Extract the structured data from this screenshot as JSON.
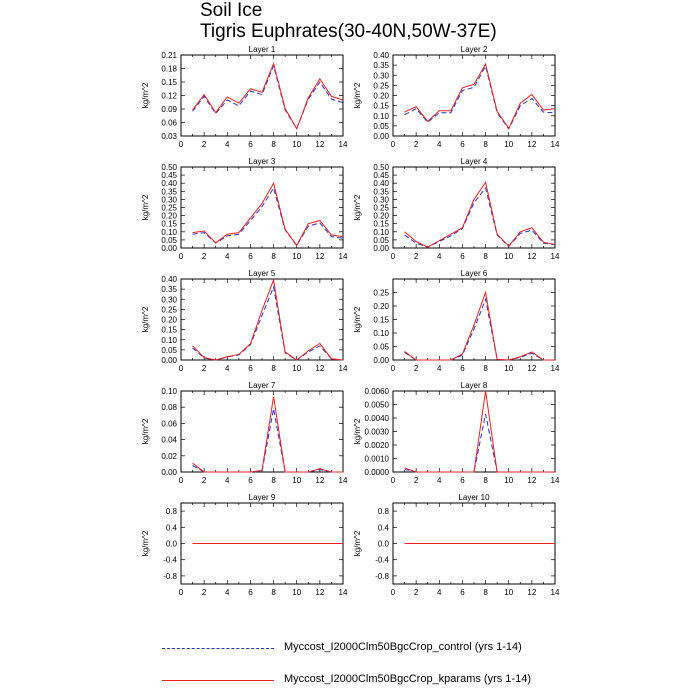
{
  "title": {
    "line1": "Soil Ice",
    "line2": "Tigris Euphrates(30-40N,50W-37E)"
  },
  "colors": {
    "control": "#2233cc",
    "kparams": "#ee2222",
    "axis": "#000000"
  },
  "legend": [
    {
      "label": "Myccost_I2000Clm50BgcCrop_control (yrs 1-14)",
      "style": "dashed",
      "color": "#2233cc"
    },
    {
      "label": "Myccost_I2000Clm50BgcCrop_kparams (yrs 1-14)",
      "style": "solid",
      "color": "#ee2222"
    }
  ],
  "chart_data": [
    {
      "type": "line",
      "title": "Layer 1",
      "ylabel": "kg/m^2",
      "x": [
        1,
        2,
        3,
        4,
        5,
        6,
        7,
        8,
        9,
        10,
        11,
        12,
        13,
        14
      ],
      "xticks": [
        0,
        2,
        4,
        6,
        8,
        10,
        12,
        14
      ],
      "xlim": [
        0,
        14
      ],
      "ylim": [
        0.03,
        0.21
      ],
      "yticks": [
        "0.03",
        "0.06",
        "0.09",
        "0.12",
        "0.15",
        "0.18",
        "0.21"
      ],
      "series": [
        {
          "name": "Myccost_I2000Clm50BgcCrop_control (yrs 1-14)",
          "values": [
            0.085,
            0.118,
            0.08,
            0.11,
            0.097,
            0.13,
            0.122,
            0.186,
            0.088,
            0.046,
            0.112,
            0.15,
            0.112,
            0.104
          ]
        },
        {
          "name": "Myccost_I2000Clm50BgcCrop_kparams (yrs 1-14)",
          "values": [
            0.088,
            0.122,
            0.082,
            0.117,
            0.103,
            0.135,
            0.127,
            0.191,
            0.091,
            0.046,
            0.115,
            0.157,
            0.118,
            0.11
          ]
        }
      ]
    },
    {
      "type": "line",
      "title": "Layer 2",
      "ylabel": "kg/m^2",
      "x": [
        1,
        2,
        3,
        4,
        5,
        6,
        7,
        8,
        9,
        10,
        11,
        12,
        13,
        14
      ],
      "xticks": [
        0,
        2,
        4,
        6,
        8,
        10,
        12,
        14
      ],
      "xlim": [
        0,
        14
      ],
      "ylim": [
        0,
        0.4
      ],
      "yticks": [
        "0.00",
        "0.05",
        "0.10",
        "0.15",
        "0.20",
        "0.25",
        "0.30",
        "0.35",
        "0.40"
      ],
      "series": [
        {
          "name": "Myccost_I2000Clm50BgcCrop_control (yrs 1-14)",
          "values": [
            0.105,
            0.135,
            0.068,
            0.115,
            0.115,
            0.225,
            0.24,
            0.345,
            0.115,
            0.035,
            0.15,
            0.185,
            0.118,
            0.115
          ]
        },
        {
          "name": "Myccost_I2000Clm50BgcCrop_kparams (yrs 1-14)",
          "values": [
            0.118,
            0.145,
            0.072,
            0.125,
            0.125,
            0.238,
            0.255,
            0.355,
            0.122,
            0.038,
            0.162,
            0.205,
            0.128,
            0.135
          ]
        }
      ]
    },
    {
      "type": "line",
      "title": "Layer 3",
      "ylabel": "kg/m^2",
      "x": [
        1,
        2,
        3,
        4,
        5,
        6,
        7,
        8,
        9,
        10,
        11,
        12,
        13,
        14
      ],
      "xticks": [
        0,
        2,
        4,
        6,
        8,
        10,
        12,
        14
      ],
      "xlim": [
        0,
        14
      ],
      "ylim": [
        0,
        0.5
      ],
      "yticks": [
        "0.00",
        "0.05",
        "0.10",
        "0.15",
        "0.20",
        "0.25",
        "0.30",
        "0.35",
        "0.40",
        "0.45",
        "0.50"
      ],
      "series": [
        {
          "name": "Myccost_I2000Clm50BgcCrop_control (yrs 1-14)",
          "values": [
            0.085,
            0.095,
            0.03,
            0.075,
            0.085,
            0.17,
            0.255,
            0.37,
            0.11,
            0.015,
            0.135,
            0.155,
            0.07,
            0.06
          ]
        },
        {
          "name": "Myccost_I2000Clm50BgcCrop_kparams (yrs 1-14)",
          "values": [
            0.095,
            0.105,
            0.032,
            0.085,
            0.095,
            0.185,
            0.275,
            0.4,
            0.115,
            0.016,
            0.15,
            0.17,
            0.08,
            0.07
          ]
        }
      ]
    },
    {
      "type": "line",
      "title": "Layer 4",
      "ylabel": "kg/m^2",
      "x": [
        1,
        2,
        3,
        4,
        5,
        6,
        7,
        8,
        9,
        10,
        11,
        12,
        13,
        14
      ],
      "xticks": [
        0,
        2,
        4,
        6,
        8,
        10,
        12,
        14
      ],
      "xlim": [
        0,
        14
      ],
      "ylim": [
        0,
        0.5
      ],
      "yticks": [
        "0.00",
        "0.05",
        "0.10",
        "0.15",
        "0.20",
        "0.25",
        "0.30",
        "0.35",
        "0.40",
        "0.45",
        "0.50"
      ],
      "series": [
        {
          "name": "Myccost_I2000Clm50BgcCrop_control (yrs 1-14)",
          "values": [
            0.08,
            0.03,
            0.005,
            0.04,
            0.075,
            0.12,
            0.28,
            0.37,
            0.08,
            0.01,
            0.09,
            0.11,
            0.03,
            0.02
          ]
        },
        {
          "name": "Myccost_I2000Clm50BgcCrop_kparams (yrs 1-14)",
          "values": [
            0.1,
            0.04,
            0.006,
            0.045,
            0.085,
            0.125,
            0.3,
            0.405,
            0.085,
            0.012,
            0.1,
            0.125,
            0.035,
            0.022
          ]
        }
      ]
    },
    {
      "type": "line",
      "title": "Layer 5",
      "ylabel": "kg/m^2",
      "x": [
        1,
        2,
        3,
        4,
        5,
        6,
        7,
        8,
        9,
        10,
        11,
        12,
        13,
        14
      ],
      "xticks": [
        0,
        2,
        4,
        6,
        8,
        10,
        12,
        14
      ],
      "xlim": [
        0,
        14
      ],
      "ylim": [
        0,
        0.4
      ],
      "yticks": [
        "0.00",
        "0.05",
        "0.10",
        "0.15",
        "0.20",
        "0.25",
        "0.30",
        "0.35",
        "0.40"
      ],
      "series": [
        {
          "name": "Myccost_I2000Clm50BgcCrop_control (yrs 1-14)",
          "values": [
            0.06,
            0.01,
            0.0,
            0.015,
            0.025,
            0.075,
            0.22,
            0.36,
            0.035,
            0.0,
            0.04,
            0.07,
            0.005,
            0.0
          ]
        },
        {
          "name": "Myccost_I2000Clm50BgcCrop_kparams (yrs 1-14)",
          "values": [
            0.07,
            0.012,
            0.0,
            0.016,
            0.028,
            0.08,
            0.245,
            0.395,
            0.04,
            0.0,
            0.045,
            0.082,
            0.006,
            0.0
          ]
        }
      ]
    },
    {
      "type": "line",
      "title": "Layer 6",
      "ylabel": "kg/m^2",
      "x": [
        1,
        2,
        3,
        4,
        5,
        6,
        7,
        8,
        9,
        10,
        11,
        12,
        13,
        14
      ],
      "xticks": [
        0,
        2,
        4,
        6,
        8,
        10,
        12,
        14
      ],
      "xlim": [
        0,
        14
      ],
      "ylim": [
        0,
        0.3
      ],
      "yticks": [
        "0.00",
        "0.05",
        "0.10",
        "0.15",
        "0.20",
        "0.25"
      ],
      "series": [
        {
          "name": "Myccost_I2000Clm50BgcCrop_control (yrs 1-14)",
          "values": [
            0.028,
            0.0,
            0.0,
            0.0,
            0.0,
            0.018,
            0.115,
            0.225,
            0.002,
            0.0,
            0.01,
            0.025,
            0.0,
            0.0
          ]
        },
        {
          "name": "Myccost_I2000Clm50BgcCrop_kparams (yrs 1-14)",
          "values": [
            0.032,
            0.0,
            0.0,
            0.0,
            0.0,
            0.022,
            0.13,
            0.25,
            0.003,
            0.0,
            0.012,
            0.03,
            0.0,
            0.0
          ]
        }
      ]
    },
    {
      "type": "line",
      "title": "Layer 7",
      "ylabel": "kg/m^2",
      "x": [
        1,
        2,
        3,
        4,
        5,
        6,
        7,
        8,
        9,
        10,
        11,
        12,
        13,
        14
      ],
      "xticks": [
        0,
        2,
        4,
        6,
        8,
        10,
        12,
        14
      ],
      "xlim": [
        0,
        14
      ],
      "ylim": [
        0,
        0.1
      ],
      "yticks": [
        "0.00",
        "0.02",
        "0.04",
        "0.06",
        "0.08",
        "0.10"
      ],
      "series": [
        {
          "name": "Myccost_I2000Clm50BgcCrop_control (yrs 1-14)",
          "values": [
            0.008,
            0.0,
            0.0,
            0.0,
            0.0,
            0.0,
            0.001,
            0.078,
            0.0,
            0.0,
            0.0,
            0.003,
            0.0,
            0.0
          ]
        },
        {
          "name": "Myccost_I2000Clm50BgcCrop_kparams (yrs 1-14)",
          "values": [
            0.011,
            0.0,
            0.0,
            0.0,
            0.0,
            0.0,
            0.002,
            0.093,
            0.0,
            0.0,
            0.0,
            0.004,
            0.0,
            0.0
          ]
        }
      ]
    },
    {
      "type": "line",
      "title": "Layer 8",
      "ylabel": "kg/m^2",
      "x": [
        1,
        2,
        3,
        4,
        5,
        6,
        7,
        8,
        9,
        10,
        11,
        12,
        13,
        14
      ],
      "xticks": [
        0,
        2,
        4,
        6,
        8,
        10,
        12,
        14
      ],
      "xlim": [
        0,
        14
      ],
      "ylim": [
        0,
        0.006
      ],
      "yticks": [
        "0.0000",
        "0.0010",
        "0.0020",
        "0.0030",
        "0.0040",
        "0.0050",
        "0.0060"
      ],
      "series": [
        {
          "name": "Myccost_I2000Clm50BgcCrop_control (yrs 1-14)",
          "values": [
            0.0002,
            0.0,
            0.0,
            0.0,
            0.0,
            0.0,
            0.0,
            0.0043,
            0.0,
            0.0,
            0.0,
            0.0,
            0.0,
            0.0
          ]
        },
        {
          "name": "Myccost_I2000Clm50BgcCrop_kparams (yrs 1-14)",
          "values": [
            0.0003,
            0.0,
            0.0,
            0.0,
            0.0,
            0.0,
            0.0,
            0.006,
            0.0,
            0.0,
            0.0,
            0.0,
            0.0,
            0.0
          ]
        }
      ]
    },
    {
      "type": "line",
      "title": "Layer 9",
      "ylabel": "kg/m^2",
      "x": [
        1,
        2,
        3,
        4,
        5,
        6,
        7,
        8,
        9,
        10,
        11,
        12,
        13,
        14
      ],
      "xticks": [
        0,
        2,
        4,
        6,
        8,
        10,
        12,
        14
      ],
      "xlim": [
        0,
        14
      ],
      "ylim": [
        -1.0,
        1.0
      ],
      "yticks": [
        "-0.8",
        "-0.4",
        "0.0",
        "0.4",
        "0.8"
      ],
      "series": [
        {
          "name": "Myccost_I2000Clm50BgcCrop_control (yrs 1-14)",
          "values": [
            0,
            0,
            0,
            0,
            0,
            0,
            0,
            0,
            0,
            0,
            0,
            0,
            0,
            0
          ]
        },
        {
          "name": "Myccost_I2000Clm50BgcCrop_kparams (yrs 1-14)",
          "values": [
            0,
            0,
            0,
            0,
            0,
            0,
            0,
            0,
            0,
            0,
            0,
            0,
            0,
            0
          ]
        }
      ]
    },
    {
      "type": "line",
      "title": "Layer 10",
      "ylabel": "kg/m^2",
      "x": [
        1,
        2,
        3,
        4,
        5,
        6,
        7,
        8,
        9,
        10,
        11,
        12,
        13,
        14
      ],
      "xticks": [
        0,
        2,
        4,
        6,
        8,
        10,
        12,
        14
      ],
      "xlim": [
        0,
        14
      ],
      "ylim": [
        -1.0,
        1.0
      ],
      "yticks": [
        "-0.8",
        "-0.4",
        "0.0",
        "0.4",
        "0.8"
      ],
      "series": [
        {
          "name": "Myccost_I2000Clm50BgcCrop_control (yrs 1-14)",
          "values": [
            0,
            0,
            0,
            0,
            0,
            0,
            0,
            0,
            0,
            0,
            0,
            0,
            0,
            0
          ]
        },
        {
          "name": "Myccost_I2000Clm50BgcCrop_kparams (yrs 1-14)",
          "values": [
            0,
            0,
            0,
            0,
            0,
            0,
            0,
            0,
            0,
            0,
            0,
            0,
            0,
            0
          ]
        }
      ]
    }
  ]
}
